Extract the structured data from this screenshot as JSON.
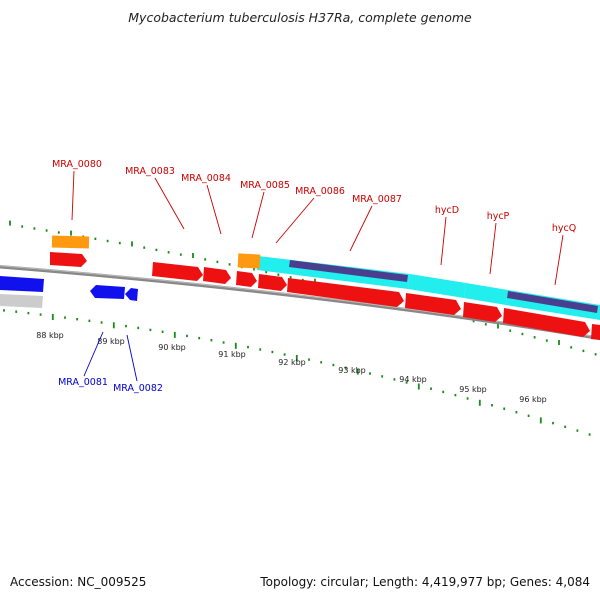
{
  "title": "Mycobacterium tuberculosis H37Ra, complete genome",
  "footer": {
    "accession": "Accession: NC_009525",
    "summary": "Topology: circular; Length: 4,419,977 bp; Genes: 4,084"
  },
  "colors": {
    "forward_cds": "#ee1111",
    "reverse_cds": "#1111ee",
    "rna": "#ff9911",
    "feature_cyan": "#22eeee",
    "feature_purple": "#4a3f8f",
    "tick": "#1a8a1a",
    "backbone": "#888888",
    "grey_feature": "#cccccc",
    "label_fwd": "#cc0000",
    "label_rev": "#0000cc"
  },
  "tick_labels": [
    "88 kbp",
    "89 kbp",
    "90 kbp",
    "91 kbp",
    "92 kbp",
    "93 kbp",
    "94 kbp",
    "95 kbp",
    "96 kbp"
  ],
  "forward_gene_labels": [
    "MRA_0080",
    "MRA_0083",
    "MRA_0084",
    "MRA_0085",
    "MRA_0086",
    "MRA_0087",
    "hycD",
    "hycP",
    "hycQ"
  ],
  "reverse_gene_labels": [
    "MRA_0081",
    "MRA_0082"
  ]
}
